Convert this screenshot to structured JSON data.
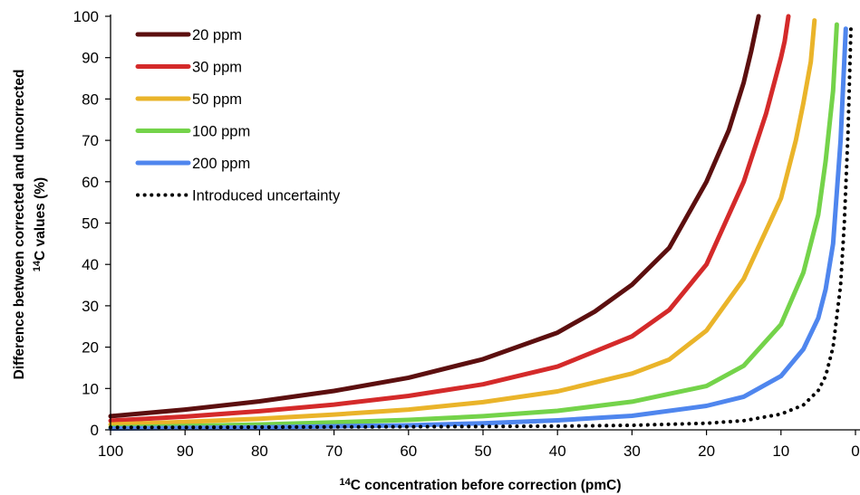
{
  "chart_data": {
    "type": "line",
    "xlabel_sup": "14",
    "xlabel_rest": "C concentration before correction (pmC)",
    "ylabel_line1": "Difference between corrected and uncorrected",
    "ylabel_sup": "14",
    "ylabel_rest": "C values (%)",
    "xlim": [
      100,
      0
    ],
    "ylim": [
      0,
      100
    ],
    "x_reversed": true,
    "x_ticks": [
      100,
      90,
      80,
      70,
      60,
      50,
      40,
      30,
      20,
      10,
      0
    ],
    "y_ticks": [
      0,
      10,
      20,
      30,
      40,
      50,
      60,
      70,
      80,
      90,
      100
    ],
    "grid": false,
    "legend_position": "top-left",
    "series": [
      {
        "name": "20 ppm",
        "color": "#5c0f0f",
        "style": "solid",
        "x": [
          100,
          90,
          80,
          70,
          60,
          50,
          40,
          35,
          30,
          25,
          20,
          17,
          15,
          14,
          13
        ],
        "y": [
          3.3,
          4.9,
          6.9,
          9.4,
          12.6,
          17.1,
          23.5,
          28.6,
          35.1,
          44,
          60,
          72.5,
          84,
          91.5,
          100
        ]
      },
      {
        "name": "30 ppm",
        "color": "#d42a2a",
        "style": "solid",
        "x": [
          100,
          90,
          80,
          70,
          60,
          50,
          40,
          30,
          25,
          20,
          15,
          12,
          10,
          9.5,
          9
        ],
        "y": [
          2.2,
          3.2,
          4.5,
          6.1,
          8.2,
          11,
          15.3,
          22.6,
          29,
          40,
          60,
          76.5,
          90,
          94,
          100
        ]
      },
      {
        "name": "50 ppm",
        "color": "#eab42a",
        "style": "solid",
        "x": [
          100,
          90,
          80,
          70,
          60,
          50,
          40,
          30,
          25,
          20,
          15,
          10,
          8,
          7,
          6,
          5.5
        ],
        "y": [
          1.3,
          1.9,
          2.7,
          3.7,
          4.9,
          6.7,
          9.3,
          13.6,
          17,
          24,
          36.5,
          56,
          70,
          79,
          89,
          99
        ]
      },
      {
        "name": "100 ppm",
        "color": "#74d34a",
        "style": "solid",
        "x": [
          100,
          90,
          80,
          70,
          60,
          50,
          40,
          30,
          20,
          15,
          10,
          7,
          5,
          4,
          3,
          2.5
        ],
        "y": [
          0.6,
          0.9,
          1.3,
          1.8,
          2.4,
          3.3,
          4.6,
          6.8,
          10.6,
          15.5,
          25.5,
          38,
          52,
          65,
          82,
          98
        ]
      },
      {
        "name": "200 ppm",
        "color": "#4f86ee",
        "style": "solid",
        "x": [
          100,
          90,
          80,
          70,
          60,
          50,
          40,
          30,
          20,
          15,
          10,
          7,
          5,
          4,
          3,
          2,
          1.3
        ],
        "y": [
          0.3,
          0.45,
          0.6,
          0.85,
          1.1,
          1.6,
          2.3,
          3.4,
          5.8,
          8,
          13,
          19.5,
          27,
          34,
          45,
          70,
          97
        ]
      },
      {
        "name": "Introduced uncertainty",
        "color": "#000000",
        "style": "dotted",
        "x": [
          100,
          90,
          80,
          70,
          60,
          50,
          40,
          30,
          20,
          15,
          10,
          7,
          5,
          4,
          3,
          2,
          1.5,
          1,
          0.6
        ],
        "y": [
          0.6,
          0.6,
          0.65,
          0.7,
          0.75,
          0.8,
          0.9,
          1.1,
          1.6,
          2.2,
          3.8,
          6,
          9.5,
          13,
          20,
          35,
          50,
          72,
          98
        ]
      }
    ]
  }
}
